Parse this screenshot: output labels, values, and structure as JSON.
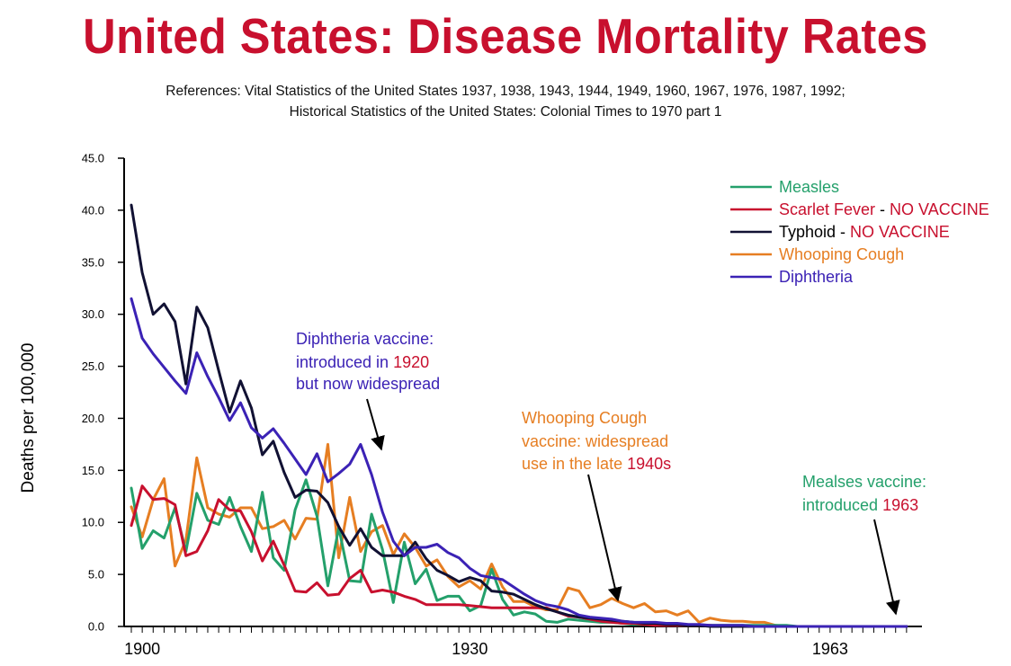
{
  "title": "United States: Disease Mortality Rates",
  "references": [
    "References: Vital Statistics of the United States 1937, 1938, 1943, 1944, 1949, 1960, 1967, 1976, 1987, 1992;",
    "Historical Statistics of the United States: Colonial Times to 1970 part 1"
  ],
  "colors": {
    "title": "#c8102e",
    "red_text": "#c8102e",
    "measles": "#24a06b",
    "scarlet": "#c8102e",
    "typhoid": "#111133",
    "whooping": "#e67e22",
    "diphtheria": "#3b22b5"
  },
  "legend": [
    {
      "key": "measles",
      "label": "Measles",
      "suffix": ""
    },
    {
      "key": "scarlet",
      "label": "Scarlet Fever",
      "suffix": "NO VACCINE"
    },
    {
      "key": "typhoid",
      "label": "Typhoid",
      "suffix": "NO VACCINE"
    },
    {
      "key": "whooping",
      "label": "Whooping Cough",
      "suffix": ""
    },
    {
      "key": "diphtheria",
      "label": "Diphtheria",
      "suffix": ""
    }
  ],
  "annotations": {
    "diphtheria": {
      "lines": [
        "Diphtheria vaccine:",
        "introduced in 1920",
        "but now widespread"
      ]
    },
    "whooping": {
      "lines": [
        "Whooping Cough",
        "vaccine: widespread",
        "use in the late 1940s"
      ]
    },
    "measles": {
      "lines": [
        "Mealses vaccine:",
        "introduced 1963"
      ]
    }
  },
  "chart_data": {
    "type": "line",
    "ylabel": "Deaths per 100,000",
    "xlabel": "",
    "ylim": [
      0,
      45
    ],
    "xlim": [
      1899,
      1971
    ],
    "yticks": [
      "0.0",
      "5.0",
      "10.0",
      "15.0",
      "20.0",
      "25.0",
      "30.0",
      "35.0",
      "40.0",
      "45.0"
    ],
    "xticks": [
      1900,
      1930,
      1963
    ],
    "x": [
      1899,
      1900,
      1901,
      1902,
      1903,
      1904,
      1905,
      1906,
      1907,
      1908,
      1909,
      1910,
      1911,
      1912,
      1913,
      1914,
      1915,
      1916,
      1917,
      1918,
      1919,
      1920,
      1921,
      1922,
      1923,
      1924,
      1925,
      1926,
      1927,
      1928,
      1929,
      1930,
      1931,
      1932,
      1933,
      1934,
      1935,
      1936,
      1937,
      1938,
      1939,
      1940,
      1941,
      1942,
      1943,
      1944,
      1945,
      1946,
      1947,
      1948,
      1949,
      1950,
      1951,
      1952,
      1953,
      1954,
      1955,
      1956,
      1957,
      1958,
      1959,
      1960,
      1961,
      1962,
      1963,
      1964,
      1965,
      1966,
      1967,
      1968,
      1969,
      1970
    ],
    "series": [
      {
        "key": "measles",
        "name": "Measles",
        "values": [
          13.3,
          7.5,
          9.2,
          8.5,
          11.4,
          7.2,
          12.8,
          10.2,
          9.8,
          12.4,
          9.6,
          7.2,
          12.9,
          6.6,
          5.4,
          11.2,
          14.1,
          10.6,
          3.9,
          9.5,
          4.4,
          4.3,
          10.8,
          7.4,
          2.3,
          8.1,
          4.1,
          5.5,
          2.5,
          2.9,
          2.9,
          1.5,
          2.0,
          5.5,
          2.6,
          1.1,
          1.4,
          1.2,
          0.5,
          0.4,
          0.7,
          0.6,
          0.5,
          0.4,
          0.4,
          0.3,
          0.2,
          0.2,
          0.2,
          0.2,
          0.1,
          0.1,
          0.1,
          0.1,
          0.1,
          0.1,
          0.1,
          0.1,
          0.1,
          0.1,
          0.1,
          0.0,
          0.0,
          0.0,
          0.0,
          0.0,
          0.0,
          0.0,
          0.0,
          0.0,
          0.0,
          0.0
        ]
      },
      {
        "key": "scarlet",
        "name": "Scarlet Fever",
        "values": [
          9.7,
          13.5,
          12.2,
          12.3,
          11.7,
          6.8,
          7.2,
          9.2,
          12.2,
          11.2,
          11.1,
          9.1,
          6.3,
          8.2,
          5.9,
          3.4,
          3.3,
          4.2,
          3.0,
          3.1,
          4.6,
          5.4,
          3.3,
          3.5,
          3.3,
          2.9,
          2.6,
          2.1,
          2.1,
          2.1,
          2.1,
          2.0,
          1.9,
          1.8,
          1.8,
          1.8,
          1.8,
          1.8,
          1.8,
          1.4,
          1.0,
          0.9,
          0.7,
          0.5,
          0.4,
          0.3,
          0.3,
          0.2,
          0.1,
          0.1,
          0.1,
          0.1,
          0.1,
          0.1,
          0.0,
          0.0,
          0.0,
          0.0,
          0.0,
          0.0,
          0.0,
          0.0,
          0.0,
          0.0,
          0.0,
          0.0,
          0.0,
          0.0,
          0.0,
          0.0,
          0.0,
          0.0
        ]
      },
      {
        "key": "typhoid",
        "name": "Typhoid",
        "values": [
          40.5,
          34.0,
          30.0,
          31.0,
          29.3,
          23.3,
          30.7,
          28.7,
          24.6,
          20.6,
          23.6,
          21.0,
          16.5,
          17.8,
          14.8,
          12.4,
          13.1,
          13.0,
          11.9,
          9.6,
          7.8,
          9.4,
          7.6,
          6.8,
          6.8,
          6.8,
          8.1,
          6.5,
          5.4,
          4.9,
          4.3,
          4.7,
          4.4,
          3.4,
          3.3,
          3.1,
          2.6,
          2.1,
          1.7,
          1.4,
          1.1,
          0.9,
          0.8,
          0.7,
          0.6,
          0.5,
          0.4,
          0.3,
          0.3,
          0.2,
          0.2,
          0.1,
          0.1,
          0.0,
          0.0,
          0.0,
          0.0,
          0.0,
          0.0,
          0.0,
          0.0,
          0.0,
          0.0,
          0.0,
          0.0,
          0.0,
          0.0,
          0.0,
          0.0,
          0.0,
          0.0,
          0.0
        ]
      },
      {
        "key": "whooping",
        "name": "Whooping Cough",
        "values": [
          11.5,
          8.6,
          12.2,
          14.2,
          5.8,
          8.3,
          16.2,
          11.4,
          10.8,
          10.5,
          11.4,
          11.4,
          9.4,
          9.6,
          10.2,
          8.4,
          10.4,
          10.3,
          17.5,
          6.6,
          12.4,
          7.2,
          9.1,
          9.7,
          6.9,
          8.9,
          7.6,
          5.8,
          6.4,
          4.8,
          3.8,
          4.4,
          3.6,
          6.0,
          3.8,
          2.4,
          2.4,
          1.9,
          1.6,
          1.6,
          3.7,
          3.4,
          1.8,
          2.1,
          2.7,
          2.2,
          1.8,
          2.2,
          1.4,
          1.5,
          1.1,
          1.5,
          0.4,
          0.8,
          0.6,
          0.5,
          0.5,
          0.4,
          0.4,
          0.1,
          0.0,
          0.0,
          0.0,
          0.0,
          0.0,
          0.0,
          0.0,
          0.0,
          0.0,
          0.0,
          0.0,
          0.0
        ]
      },
      {
        "key": "diphtheria",
        "name": "Diphtheria",
        "values": [
          31.5,
          27.7,
          26.2,
          24.9,
          23.6,
          22.4,
          26.3,
          24.0,
          22.0,
          19.8,
          21.5,
          19.1,
          18.1,
          19.0,
          17.6,
          16.1,
          14.6,
          16.6,
          13.9,
          14.7,
          15.6,
          17.5,
          14.6,
          11.0,
          8.2,
          6.8,
          7.6,
          7.6,
          7.9,
          7.1,
          6.6,
          5.6,
          4.9,
          4.7,
          4.5,
          3.8,
          3.1,
          2.5,
          2.1,
          1.9,
          1.6,
          1.1,
          0.9,
          0.8,
          0.7,
          0.5,
          0.4,
          0.4,
          0.4,
          0.3,
          0.3,
          0.2,
          0.2,
          0.1,
          0.1,
          0.1,
          0.1,
          0.0,
          0.0,
          0.0,
          0.0,
          0.0,
          0.0,
          0.0,
          0.0,
          0.0,
          0.0,
          0.0,
          0.0,
          0.0,
          0.0,
          0.0
        ]
      }
    ]
  }
}
